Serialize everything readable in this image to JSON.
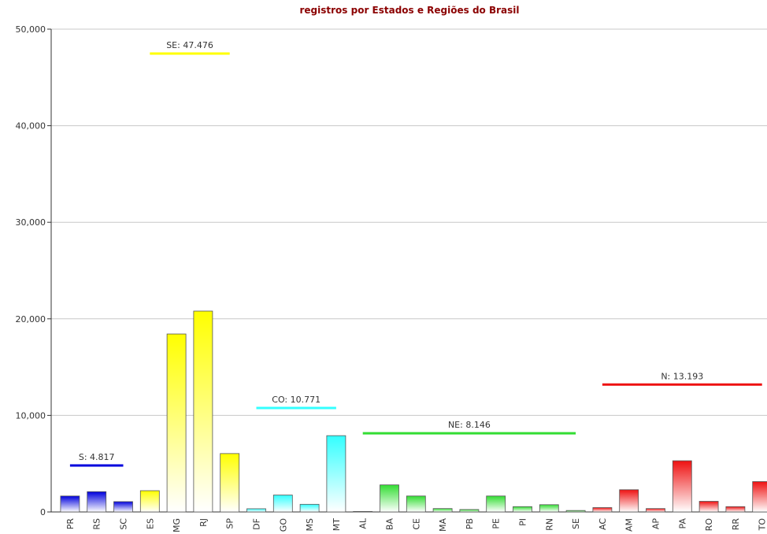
{
  "chart_data": {
    "type": "bar",
    "title": "registros por Estados e Regiões do Brasil",
    "ylim": [
      0,
      50000
    ],
    "yticks": [
      0,
      {
        "value": 10000,
        "label": "10,000"
      },
      {
        "value": 20000,
        "label": "20,000"
      },
      {
        "value": 30000,
        "label": "30,000"
      },
      {
        "value": 40000,
        "label": "40,000"
      },
      {
        "value": 50000,
        "label": "50,000"
      }
    ],
    "grid": true,
    "series": [
      {
        "label": "S: 4.817",
        "total": 4817,
        "color": "#0000dd",
        "categories": [
          "PR",
          "RS",
          "SC"
        ],
        "values": [
          1650,
          2100,
          1067
        ]
      },
      {
        "label": "SE: 47.476",
        "total": 47476,
        "color": "#ffff00",
        "categories": [
          "ES",
          "MG",
          "RJ",
          "SP"
        ],
        "values": [
          2200,
          18430,
          20800,
          6046
        ]
      },
      {
        "label": "CO: 10.771",
        "total": 10771,
        "color": "#33ffff",
        "categories": [
          "DF",
          "GO",
          "MS",
          "MT"
        ],
        "values": [
          330,
          1750,
          790,
          7900
        ]
      },
      {
        "label": "NE: 8.146",
        "total": 8146,
        "color": "#33dd33",
        "categories": [
          "AL",
          "BA",
          "CE",
          "MA",
          "PB",
          "PE",
          "PI",
          "RN",
          "SE"
        ],
        "values": [
          50,
          2800,
          1650,
          350,
          250,
          1650,
          550,
          750,
          150
        ]
      },
      {
        "label": "N: 13.193",
        "total": 13193,
        "color": "#ee1111",
        "categories": [
          "AC",
          "AM",
          "AP",
          "PA",
          "RO",
          "RR",
          "TO"
        ],
        "values": [
          450,
          2300,
          350,
          5300,
          1100,
          550,
          3143
        ]
      }
    ]
  }
}
